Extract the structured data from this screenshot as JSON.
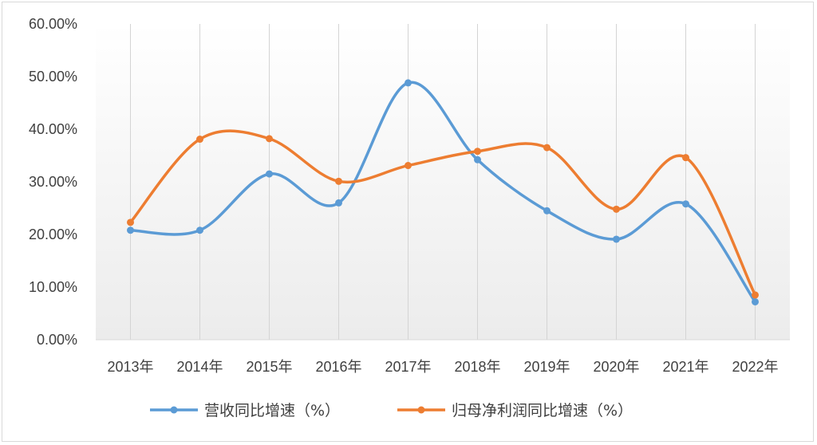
{
  "chart_data": {
    "type": "line",
    "categories": [
      "2013年",
      "2014年",
      "2015年",
      "2016年",
      "2017年",
      "2018年",
      "2019年",
      "2020年",
      "2021年",
      "2022年"
    ],
    "series": [
      {
        "name": "营收同比增速（%）",
        "color": "#5b9bd5",
        "values": [
          20.8,
          20.8,
          31.5,
          26.0,
          48.8,
          34.2,
          24.5,
          19.1,
          25.8,
          7.2
        ]
      },
      {
        "name": "归母净利润同比增速（%）",
        "color": "#ed7d31",
        "values": [
          22.3,
          38.1,
          38.2,
          30.1,
          33.1,
          35.8,
          36.5,
          24.8,
          34.6,
          8.5
        ]
      }
    ],
    "ylim": [
      0,
      60
    ],
    "y_ticks": [
      "0.00%",
      "10.00%",
      "20.00%",
      "30.00%",
      "40.00%",
      "50.00%",
      "60.00%"
    ],
    "y_tick_values": [
      0,
      10,
      20,
      30,
      40,
      50,
      60
    ],
    "smooth": true,
    "plot_area_shading": "gradient",
    "vertical_gridlines": true,
    "legend_position": "bottom"
  }
}
